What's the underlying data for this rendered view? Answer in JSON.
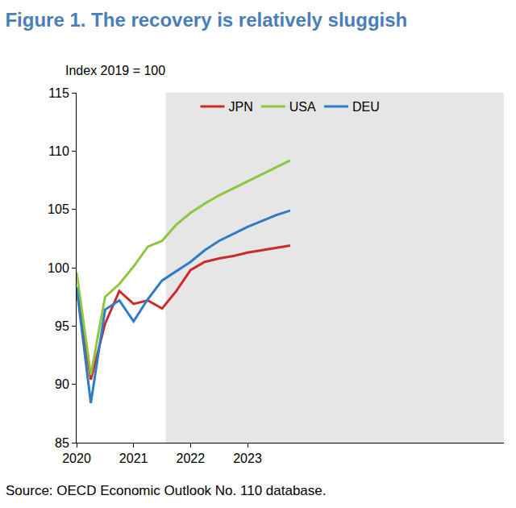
{
  "chart_data": {
    "type": "line",
    "title": "Figure 1. The recovery is relatively sluggish",
    "ylabel": "Index 2019 = 100",
    "note": "Source: OECD Economic Outlook No. 110 database.",
    "categories": [
      "2020",
      null,
      null,
      null,
      "2021",
      null,
      null,
      null,
      "2022",
      null,
      null,
      null,
      "2023",
      null,
      null,
      null
    ],
    "series": [
      {
        "name": "JPN",
        "color": "#cc2b2b",
        "values": [
          98.2,
          90.4,
          95.2,
          98.0,
          96.9,
          97.2,
          96.5,
          98.0,
          99.8,
          100.5,
          100.8,
          101.0,
          101.3,
          101.5,
          101.7,
          101.9
        ]
      },
      {
        "name": "USA",
        "color": "#8dc63f",
        "values": [
          99.6,
          90.8,
          97.5,
          98.6,
          100.1,
          101.8,
          102.3,
          103.7,
          104.7,
          105.5,
          106.2,
          106.8,
          107.4,
          108.0,
          108.6,
          109.2
        ]
      },
      {
        "name": "DEU",
        "color": "#2e7cc4",
        "values": [
          98.3,
          88.4,
          96.4,
          97.2,
          95.4,
          97.3,
          98.9,
          99.7,
          100.5,
          101.5,
          102.3,
          102.9,
          103.5,
          104.0,
          104.5,
          104.9
        ]
      }
    ],
    "ylim": [
      85,
      115
    ],
    "yticks": [
      85,
      90,
      95,
      100,
      105,
      110,
      115
    ],
    "grid": false,
    "legend": "top"
  }
}
